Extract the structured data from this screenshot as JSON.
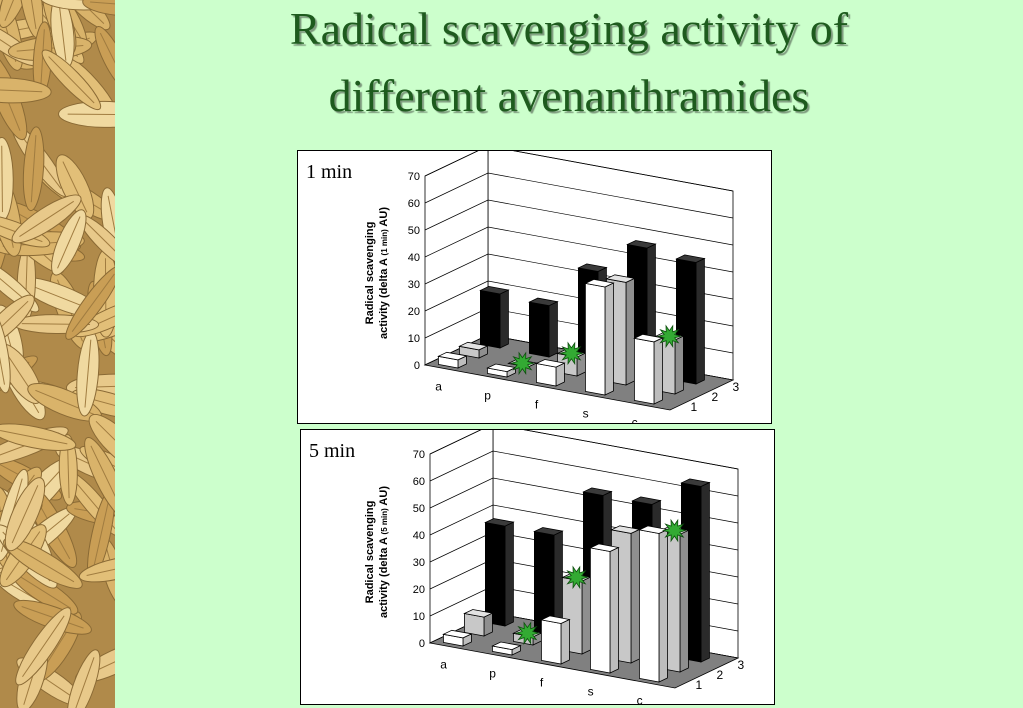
{
  "title": {
    "line1": "Radical scavenging activity of",
    "line2": "different avenanthramides"
  },
  "colors": {
    "background": "#ccffcc",
    "title": "#1e5b1e",
    "series1": "#ffffff",
    "series2": "#c8c8c8",
    "series3": "#000000",
    "floor": "#808080",
    "star": "#33aa33"
  },
  "icons": [
    "oat-grain-border",
    "green-star-icon"
  ],
  "chart_data": [
    {
      "type": "bar",
      "subtype": "3d-bar",
      "panel_label": "1 min",
      "ylabel_parts": [
        "Radical scavenging",
        "activity (delta A ",
        "(1 min)",
        " AU)"
      ],
      "categories": [
        "a",
        "p",
        "f",
        "s",
        "c"
      ],
      "depth_labels": [
        "1",
        "2",
        "3"
      ],
      "yticks": [
        "0",
        "10",
        "20",
        "30",
        "40",
        "50",
        "60",
        "70"
      ],
      "ylim": [
        0,
        70
      ],
      "series": [
        {
          "depth": "1",
          "values": [
            3,
            2,
            7,
            40,
            23
          ]
        },
        {
          "depth": "2",
          "values": [
            3,
            0,
            7,
            38,
            20
          ]
        },
        {
          "depth": "3",
          "values": [
            20,
            19,
            35,
            47,
            45
          ]
        }
      ],
      "stars": [
        [
          1,
          1
        ],
        [
          2,
          1
        ],
        [
          4,
          1
        ]
      ]
    },
    {
      "type": "bar",
      "subtype": "3d-bar",
      "panel_label": "5 min",
      "ylabel_parts": [
        "Radical scavenging",
        "activity (delta A ",
        "(5 min)",
        " AU)"
      ],
      "categories": [
        "a",
        "p",
        "f",
        "s",
        "c"
      ],
      "depth_labels": [
        "1",
        "2",
        "3"
      ],
      "yticks": [
        "0",
        "10",
        "20",
        "30",
        "40",
        "50",
        "60",
        "70"
      ],
      "ylim": [
        0,
        70
      ],
      "series": [
        {
          "depth": "1",
          "values": [
            3,
            2,
            15,
            45,
            55
          ]
        },
        {
          "depth": "2",
          "values": [
            7,
            3,
            27,
            48,
            51
          ]
        },
        {
          "depth": "3",
          "values": [
            37,
            37,
            55,
            55,
            65
          ]
        }
      ],
      "stars": [
        [
          1,
          1
        ],
        [
          2,
          1
        ],
        [
          4,
          1
        ]
      ]
    }
  ]
}
